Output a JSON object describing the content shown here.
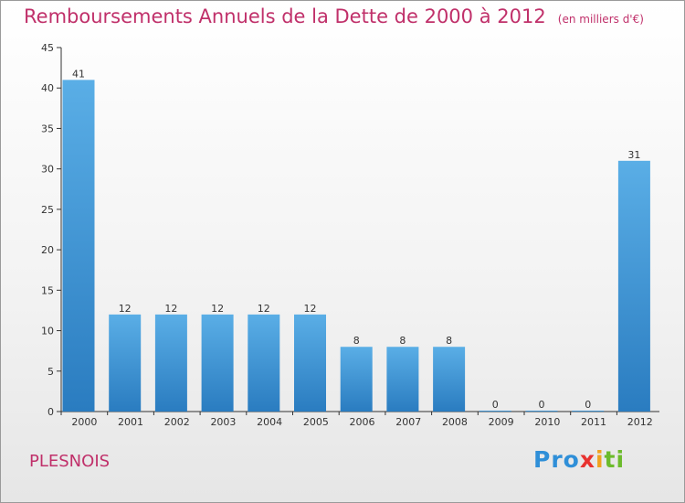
{
  "header": {
    "title": "Remboursements Annuels de la Dette de 2000 à 2012",
    "unit": "(en milliers d'€)"
  },
  "footer": {
    "town": "PLESNOIS",
    "logo": "Proxiti",
    "logo_parts": [
      "Pro",
      "x",
      "i",
      "ti"
    ]
  },
  "colors": {
    "bar_top": "#5aaee6",
    "bar_bottom": "#2a7cc0",
    "title": "#c0306a",
    "axis": "#333333"
  },
  "chart_data": {
    "type": "bar",
    "title": "Remboursements Annuels de la Dette de 2000 à 2012",
    "subtitle": "(en milliers d'€)",
    "xlabel": "",
    "ylabel": "",
    "categories": [
      "2000",
      "2001",
      "2002",
      "2003",
      "2004",
      "2005",
      "2006",
      "2007",
      "2008",
      "2009",
      "2010",
      "2011",
      "2012"
    ],
    "values": [
      41,
      12,
      12,
      12,
      12,
      12,
      8,
      8,
      8,
      0,
      0,
      0,
      31
    ],
    "data_labels": [
      "41",
      "12",
      "12",
      "12",
      "12",
      "12",
      "8",
      "8",
      "8",
      "0",
      "0",
      "0",
      "31"
    ],
    "ylim": [
      0,
      45
    ],
    "yticks": [
      0,
      5,
      10,
      15,
      20,
      25,
      30,
      35,
      40,
      45
    ],
    "grid": false,
    "legend": "none"
  }
}
